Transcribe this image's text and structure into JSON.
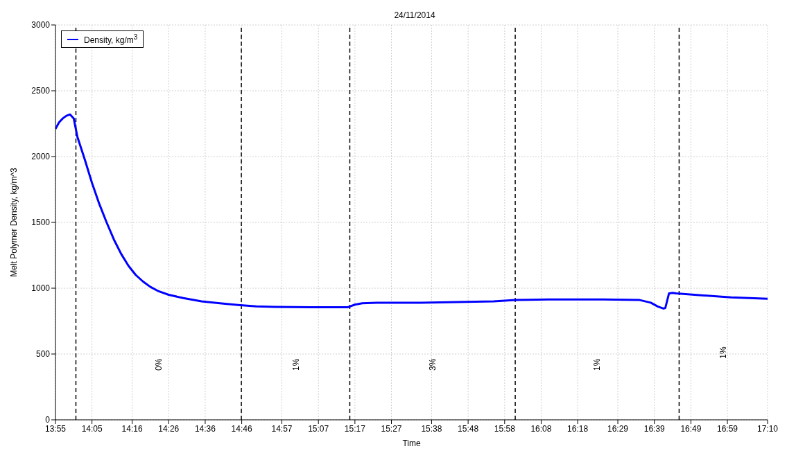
{
  "chart_data": {
    "type": "line",
    "title": "24/11/2014",
    "xlabel": "Time",
    "ylabel": "Melt Polymer Density, kg/m^3",
    "x": [
      13.9167,
      13.9333,
      13.95,
      13.9667,
      13.9833,
      14.0,
      14.0167,
      14.05,
      14.0833,
      14.1167,
      14.15,
      14.1833,
      14.2167,
      14.25,
      14.2833,
      14.3167,
      14.35,
      14.3833,
      14.4333,
      14.5,
      14.5833,
      14.6667,
      14.75,
      14.8333,
      14.9167,
      15.0833,
      15.25,
      15.2833,
      15.3167,
      15.3833,
      15.5833,
      15.75,
      15.9167,
      16.0167,
      16.1667,
      16.4167,
      16.5833,
      16.6333,
      16.6667,
      16.6917,
      16.7,
      16.7167,
      16.7333,
      16.75,
      16.8333,
      17.0,
      17.1667
    ],
    "series": [
      {
        "name": "Density, kg/m$^{3}$",
        "color": "#0000ff",
        "values": [
          2210,
          2260,
          2290,
          2310,
          2320,
          2290,
          2150,
          1980,
          1800,
          1640,
          1500,
          1370,
          1260,
          1170,
          1100,
          1050,
          1010,
          980,
          950,
          925,
          900,
          885,
          872,
          862,
          858,
          855,
          855,
          875,
          885,
          890,
          890,
          895,
          900,
          910,
          915,
          915,
          910,
          890,
          860,
          845,
          850,
          960,
          965,
          960,
          950,
          930,
          920
        ]
      }
    ],
    "xlim": [
      13.9167,
      17.1667
    ],
    "xticks": [
      {
        "value": 13.9167,
        "label": "13:55"
      },
      {
        "value": 14.0833,
        "label": "14:05"
      },
      {
        "value": 14.2667,
        "label": "14:16"
      },
      {
        "value": 14.4333,
        "label": "14:26"
      },
      {
        "value": 14.6,
        "label": "14:36"
      },
      {
        "value": 14.7667,
        "label": "14:46"
      },
      {
        "value": 14.95,
        "label": "14:57"
      },
      {
        "value": 15.1167,
        "label": "15:07"
      },
      {
        "value": 15.2833,
        "label": "15:17"
      },
      {
        "value": 15.45,
        "label": "15:27"
      },
      {
        "value": 15.6333,
        "label": "15:38"
      },
      {
        "value": 15.8,
        "label": "15:48"
      },
      {
        "value": 15.9667,
        "label": "15:58"
      },
      {
        "value": 16.1333,
        "label": "16:08"
      },
      {
        "value": 16.3,
        "label": "16:18"
      },
      {
        "value": 16.4833,
        "label": "16:29"
      },
      {
        "value": 16.65,
        "label": "16:39"
      },
      {
        "value": 16.8167,
        "label": "16:49"
      },
      {
        "value": 16.9833,
        "label": "16:59"
      },
      {
        "value": 17.1667,
        "label": "17:10"
      }
    ],
    "ylim": [
      0,
      3000
    ],
    "yticks": [
      0,
      500,
      1000,
      1500,
      2000,
      2500,
      3000
    ],
    "grid": true,
    "legend": "top left",
    "marker": "none",
    "line_style": "solid",
    "ref_lines": [
      {
        "axis": "x",
        "value": 14.01,
        "color": "#000000",
        "line_style": "dashed"
      },
      {
        "axis": "x",
        "value": 14.765,
        "color": "#000000",
        "line_style": "dashed"
      },
      {
        "axis": "x",
        "value": 15.26,
        "color": "#000000",
        "line_style": "dashed"
      },
      {
        "axis": "x",
        "value": 16.015,
        "color": "#000000",
        "line_style": "dashed"
      },
      {
        "axis": "x",
        "value": 16.763,
        "color": "#000000",
        "line_style": "dashed"
      }
    ],
    "annotations": [
      "0%",
      "1%",
      "3%",
      "1%",
      "1%"
    ]
  }
}
